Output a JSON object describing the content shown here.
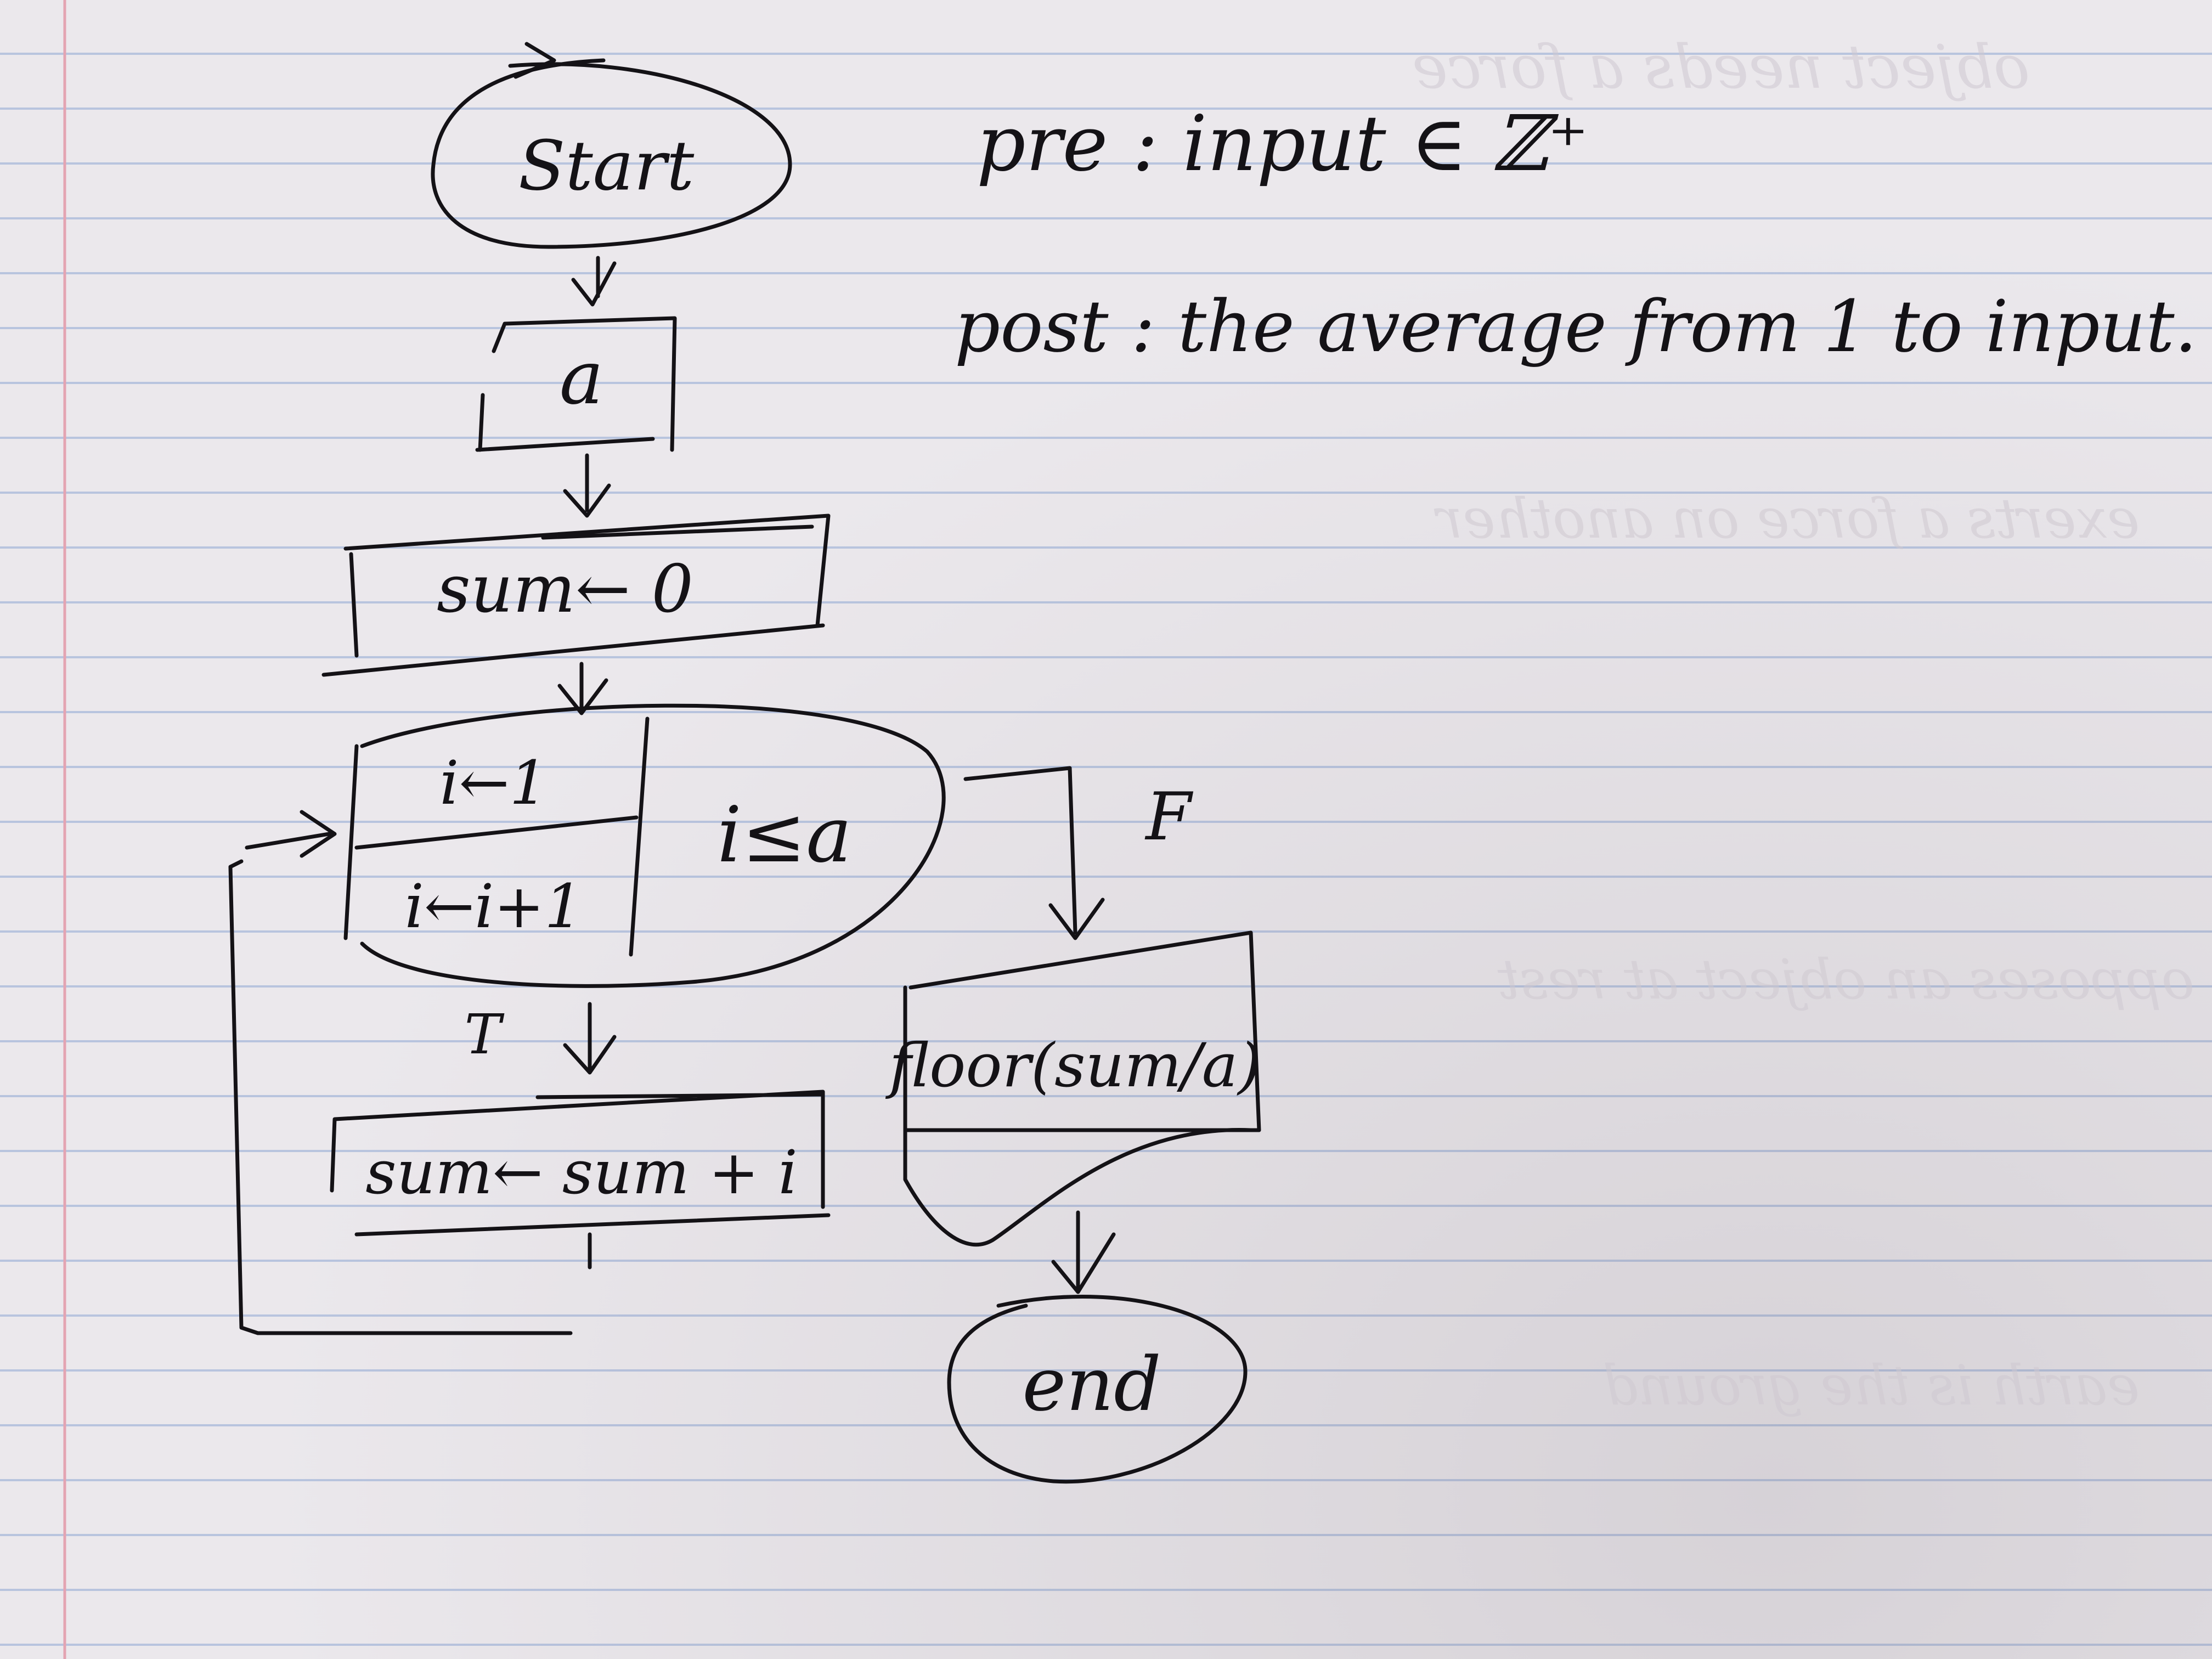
{
  "flowchart": {
    "start": "Start",
    "input": "a",
    "init": "sum← 0",
    "loop_init": "i←1",
    "loop_condition": "i≤a",
    "loop_step": "i←i+1",
    "true_label": "T",
    "false_label": "F",
    "body": "sum← sum + i",
    "output": "floor(sum/a)",
    "end": "end"
  },
  "spec": {
    "pre": "pre : input ∈ ℤ⁺",
    "post": "post : the average from 1 to input."
  }
}
